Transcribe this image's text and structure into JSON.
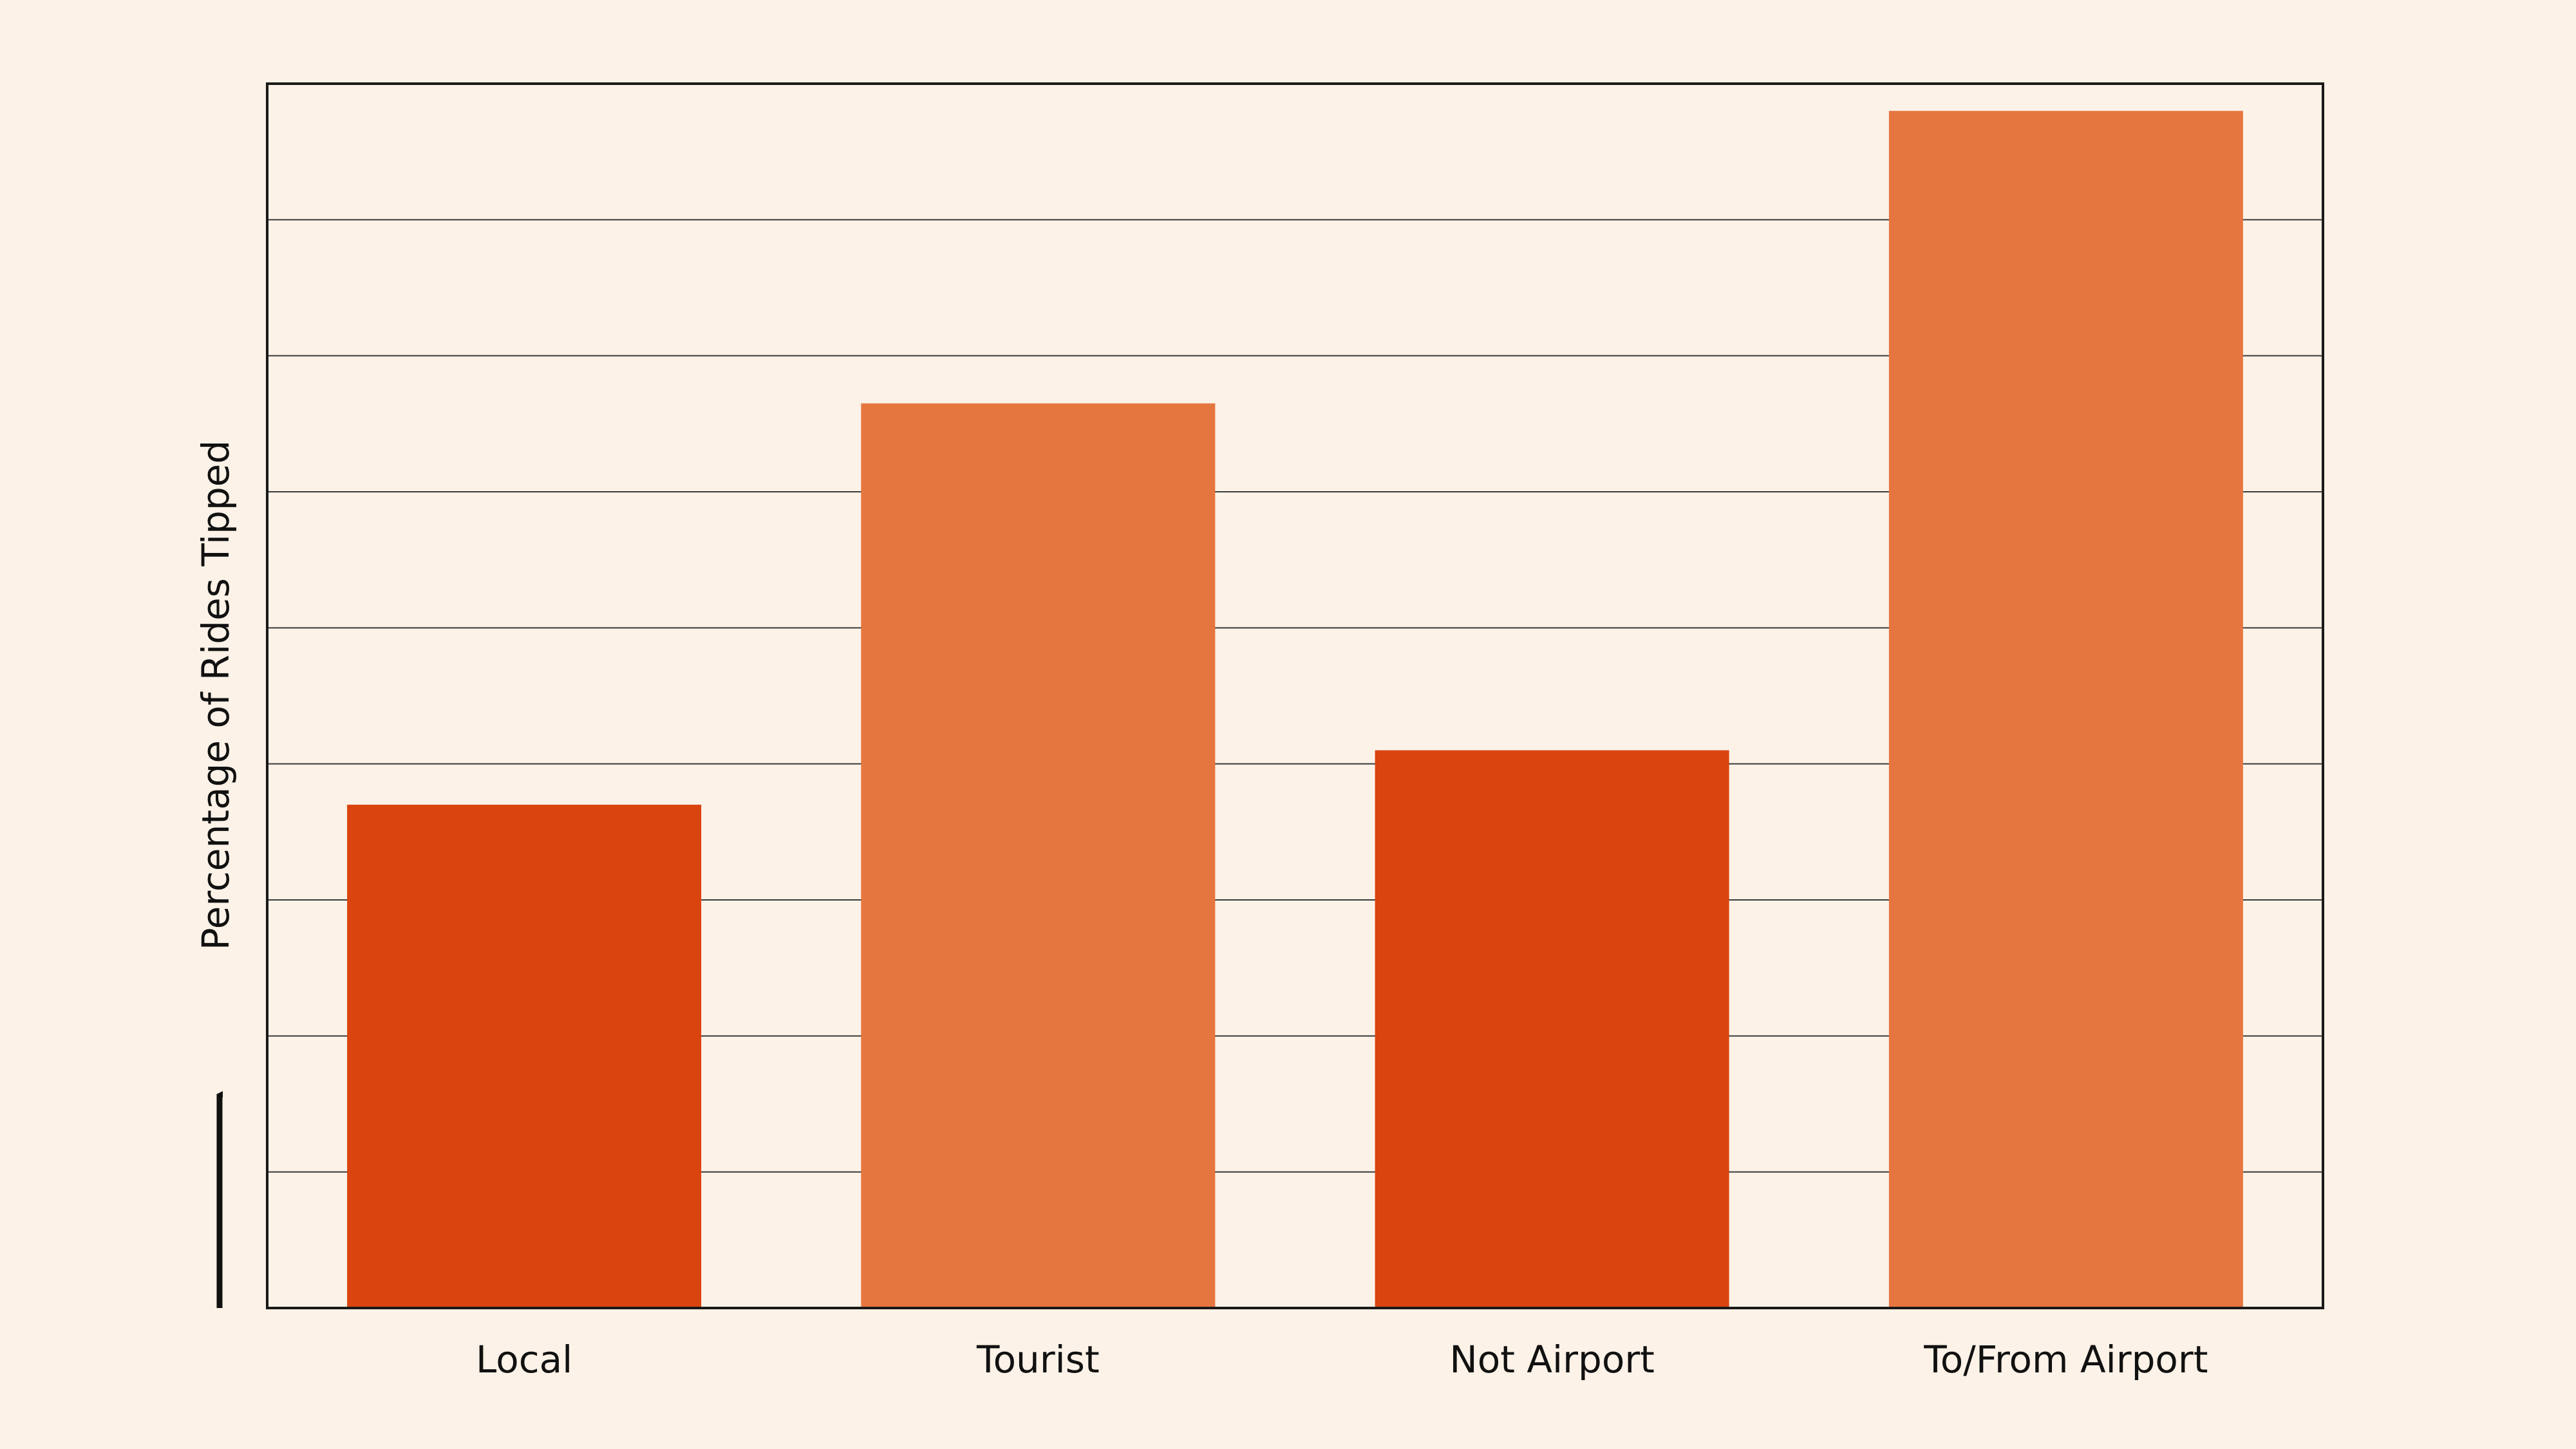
{
  "colors": {
    "background": "#fdf2e7",
    "dark_bar": "#d9440f",
    "light_bar": "#e67640",
    "axis": "#1a1a1a",
    "grid": "#3a3a3a"
  },
  "chart_data": {
    "type": "bar",
    "title": "",
    "xlabel": "",
    "ylabel": "Percentage of Rides Tipped",
    "categories": [
      "Local",
      "Tourist",
      "Not Airport",
      "To/From Airport"
    ],
    "values": [
      3.7,
      6.65,
      4.1,
      8.8
    ],
    "bar_colors": [
      "dark_bar",
      "light_bar",
      "dark_bar",
      "light_bar"
    ],
    "ylim": [
      0,
      9
    ],
    "grid": true,
    "gridlines_y": [
      1,
      2,
      3,
      4,
      5,
      6,
      7,
      8
    ],
    "y_ticks_labeled": false,
    "legend": "none"
  }
}
